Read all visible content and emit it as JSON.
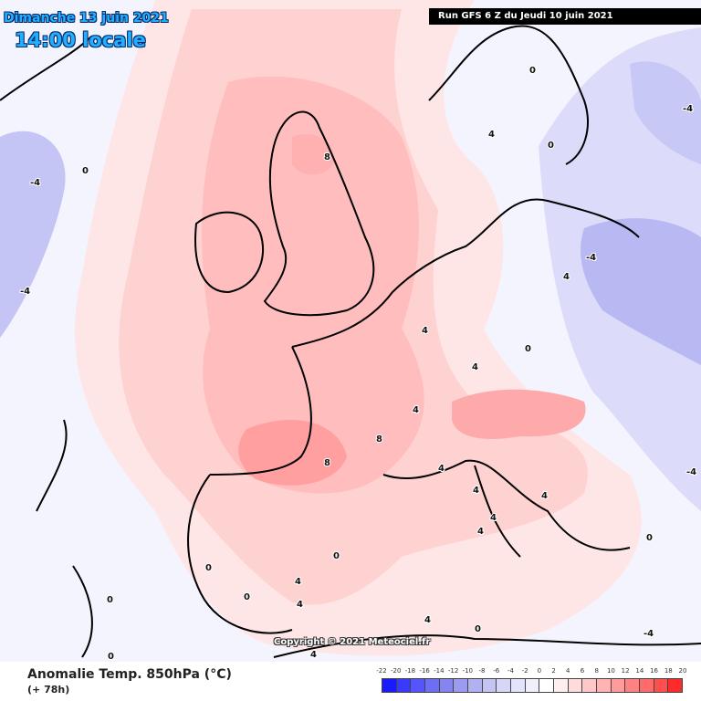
{
  "header": {
    "date": "Dimanche 13 juin 2021",
    "local_time": "14:00 locale",
    "run": "Run GFS 6 Z du Jeudi 10 juin 2021"
  },
  "copyright": "Copyright © 2021 Meteociel.fr",
  "footer": {
    "variable": "Anomalie Temp. 850hPa (°C)",
    "forecast_hour": "(+ 78h)"
  },
  "legend": {
    "ticks": [
      "-22",
      "-20",
      "-18",
      "-16",
      "-14",
      "-12",
      "-10",
      "-8",
      "-6",
      "-4",
      "-2",
      "0",
      "2",
      "4",
      "6",
      "8",
      "10",
      "12",
      "14",
      "16",
      "18",
      "20"
    ],
    "colors": [
      "#1a1aff",
      "#3a3aff",
      "#5555ff",
      "#6e6ef5",
      "#8585f0",
      "#9b9bf0",
      "#b1b1f2",
      "#c5c5f5",
      "#d6d6f8",
      "#e3e3fb",
      "#f0f0fd",
      "#ffffff",
      "#ffeeee",
      "#ffdcdc",
      "#ffc8c8",
      "#ffb3b3",
      "#ff9b9b",
      "#ff8282",
      "#ff6a6a",
      "#ff4e4e",
      "#ff2a2a"
    ]
  },
  "contour_labels": [
    "0",
    "0",
    "-4",
    "-4",
    "0",
    "4",
    "8",
    "4",
    "4",
    "4",
    "8",
    "8",
    "4",
    "4",
    "4",
    "4",
    "0",
    "4",
    "0",
    "4",
    "-4",
    "-4",
    "-4",
    "4",
    "4",
    "0",
    "0",
    "4",
    "4",
    "0",
    "0",
    "-4",
    "0",
    "0"
  ]
}
